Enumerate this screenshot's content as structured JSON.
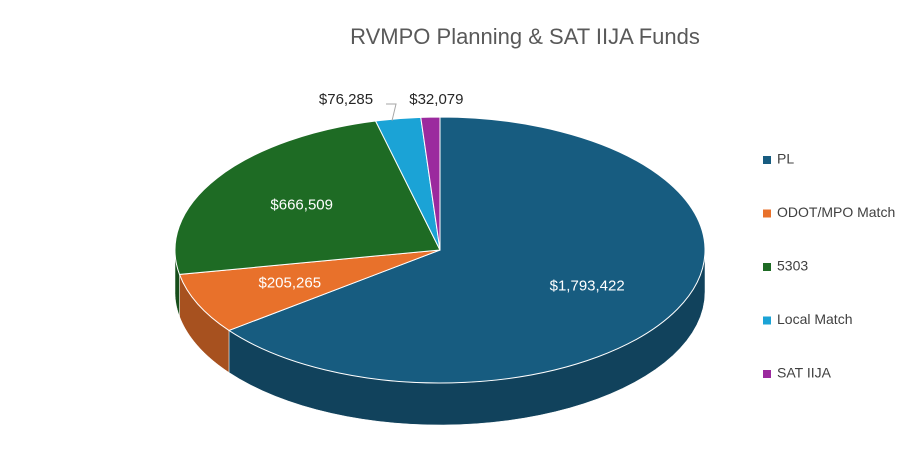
{
  "chart_data": {
    "type": "pie",
    "title": "RVMPO Planning & SAT IIJA Funds",
    "categories": [
      "PL",
      "ODOT/MPO Match",
      "5303",
      "Local Match",
      "SAT IIJA"
    ],
    "values": [
      1793422,
      205265,
      666509,
      76285,
      32079
    ],
    "value_labels": [
      "$1,793,422",
      "$205,265",
      "$666,509",
      "$76,285",
      "$32,079"
    ],
    "colors": [
      "#175c80",
      "#e8712b",
      "#1e6b24",
      "#1ba3d6",
      "#9b2a9e"
    ],
    "legend": "right"
  }
}
